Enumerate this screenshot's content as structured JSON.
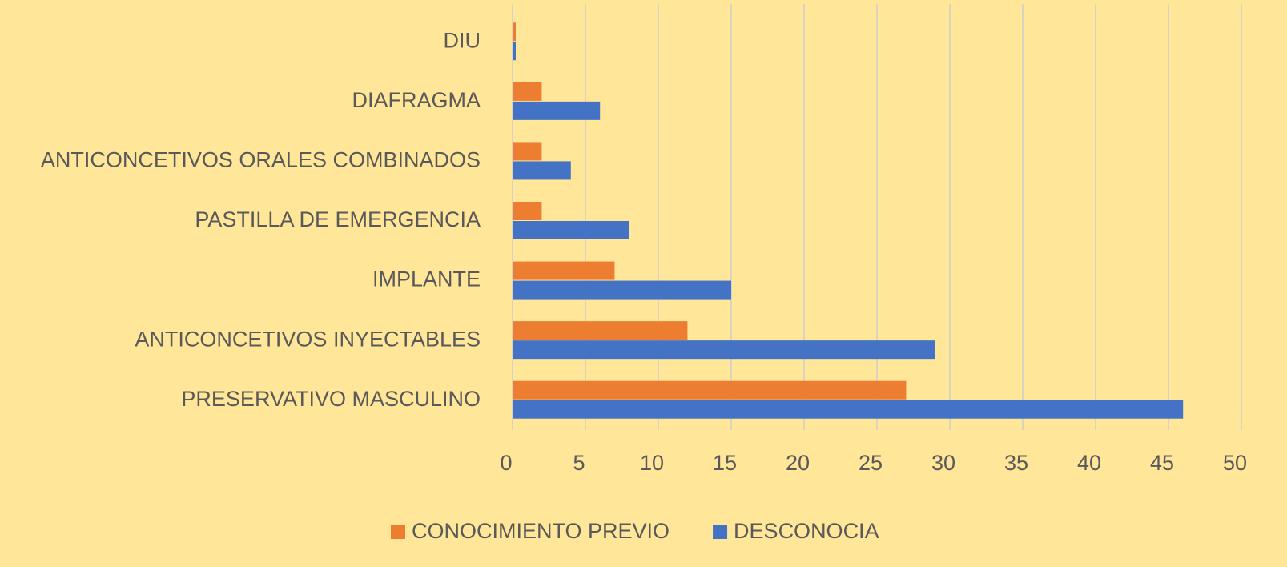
{
  "chart_data": {
    "type": "bar",
    "orientation": "horizontal",
    "categories": [
      "PRESERVATIVO MASCULINO",
      "ANTICONCETIVOS INYECTABLES",
      "IMPLANTE",
      "PASTILLA DE EMERGENCIA",
      "ANTICONCETIVOS ORALES COMBINADOS",
      "DIAFRAGMA",
      "DIU"
    ],
    "series": [
      {
        "name": "CONOCIMIENTO PREVIO",
        "color": "#ED7D31",
        "values": [
          27,
          12,
          7,
          2,
          2,
          2,
          0
        ]
      },
      {
        "name": "DESCONOCIA",
        "color": "#4472C4",
        "values": [
          46,
          29,
          15,
          8,
          4,
          6,
          0
        ]
      }
    ],
    "xlim": [
      0,
      50
    ],
    "xticks": [
      0,
      5,
      10,
      15,
      20,
      25,
      30,
      35,
      40,
      45,
      50
    ],
    "grid": true,
    "legend": "bottom"
  }
}
